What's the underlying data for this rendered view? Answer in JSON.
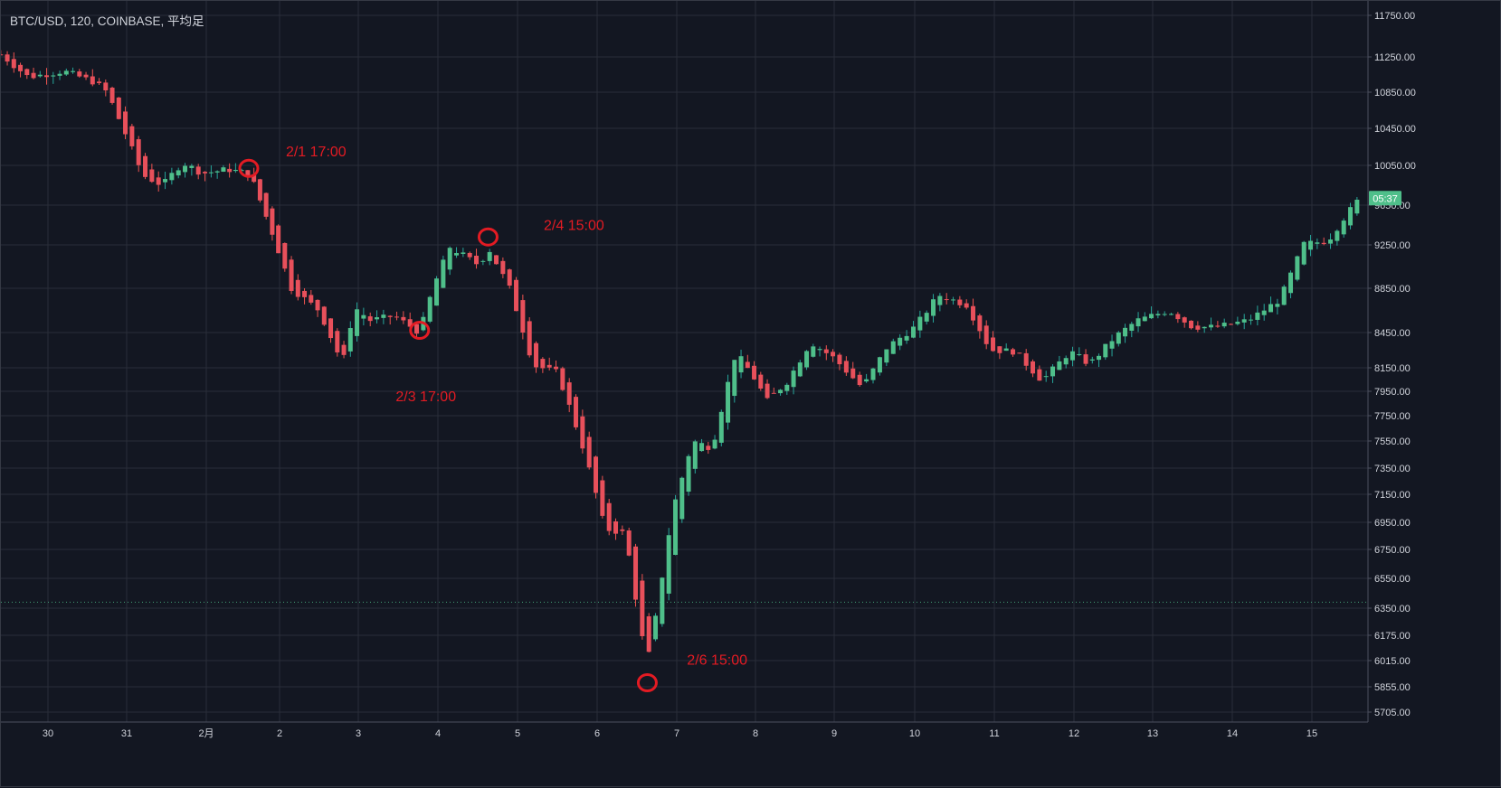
{
  "header": {
    "title": "BTC/USD, 120, COINBASE, 平均足"
  },
  "colors": {
    "background": "#131722",
    "grid": "#2a2e39",
    "up": "#26a69a",
    "upBody": "#4fbf8a",
    "down": "#ef5350",
    "downBody": "#e8505b",
    "annotation": "#e31b23",
    "axisText": "#d1d4dc",
    "priceBadge": "#4fbf8a",
    "refLine": "#4fbf8a"
  },
  "chart_data": {
    "type": "candlestick",
    "title": "BTC/USD, 120, COINBASE, 平均足",
    "y_axis": {
      "position": "right",
      "ticks": [
        {
          "value": 11750,
          "label": "11750.00"
        },
        {
          "value": 11250,
          "label": "11250.00"
        },
        {
          "value": 10850,
          "label": "10850.00"
        },
        {
          "value": 10450,
          "label": "10450.00"
        },
        {
          "value": 10050,
          "label": "10050.00"
        },
        {
          "value": 9650,
          "label": "9650.00"
        },
        {
          "value": 9250,
          "label": "9250.00"
        },
        {
          "value": 8850,
          "label": "8850.00"
        },
        {
          "value": 8450,
          "label": "8450.00"
        },
        {
          "value": 8150,
          "label": "8150.00"
        },
        {
          "value": 7950,
          "label": "7950.00"
        },
        {
          "value": 7750,
          "label": "7750.00"
        },
        {
          "value": 7550,
          "label": "7550.00"
        },
        {
          "value": 7350,
          "label": "7350.00"
        },
        {
          "value": 7150,
          "label": "7150.00"
        },
        {
          "value": 6950,
          "label": "6950.00"
        },
        {
          "value": 6750,
          "label": "6750.00"
        },
        {
          "value": 6550,
          "label": "6550.00"
        },
        {
          "value": 6350,
          "label": "6350.00"
        },
        {
          "value": 6175,
          "label": "6175.00"
        },
        {
          "value": 6015,
          "label": "6015.00"
        },
        {
          "value": 5855,
          "label": "5855.00"
        },
        {
          "value": 5705,
          "label": "5705.00"
        }
      ]
    },
    "x_axis": {
      "labels": [
        "30",
        "31",
        "2月",
        "2",
        "3",
        "4",
        "5",
        "6",
        "7",
        "8",
        "9",
        "10",
        "11",
        "12",
        "13",
        "14",
        "15"
      ],
      "label_days": [
        -2,
        -1,
        0,
        1,
        2,
        3,
        4,
        5,
        6,
        7,
        8,
        9,
        10,
        11,
        12,
        13,
        14
      ],
      "candles_per_day": 12,
      "first_candle_day": -2.6
    },
    "current_price_badge": "05:37",
    "current_price": 9720,
    "reference_line_price": 6390,
    "annotations": [
      {
        "label": "2/1 17:00",
        "day": 0.58,
        "price": 10020,
        "label_day_offset": 0.5,
        "label_price": 10150
      },
      {
        "label": "2/3 17:00",
        "day": 2.77,
        "price": 8470,
        "label_day_offset": -0.3,
        "label_price": 7870
      },
      {
        "label": "2/4 15:00",
        "day": 3.63,
        "price": 9330,
        "label_day_offset": 0.7,
        "label_price": 9400
      },
      {
        "label": "2/6 15:00",
        "day": 5.63,
        "price": 5880,
        "label_day_offset": 0.5,
        "label_price": 5990
      }
    ],
    "anchors": [
      {
        "day": -2.6,
        "price": 11280
      },
      {
        "day": -2.25,
        "price": 11020
      },
      {
        "day": -1.8,
        "price": 11090
      },
      {
        "day": -1.4,
        "price": 10960
      },
      {
        "day": -1.25,
        "price": 10850
      },
      {
        "day": -1.0,
        "price": 10360
      },
      {
        "day": -0.8,
        "price": 9950
      },
      {
        "day": -0.55,
        "price": 9850
      },
      {
        "day": -0.3,
        "price": 10080
      },
      {
        "day": -0.05,
        "price": 9970
      },
      {
        "day": 0.3,
        "price": 10010
      },
      {
        "day": 0.6,
        "price": 9960
      },
      {
        "day": 0.9,
        "price": 9370
      },
      {
        "day": 1.15,
        "price": 8850
      },
      {
        "day": 1.5,
        "price": 8650
      },
      {
        "day": 1.8,
        "price": 8180
      },
      {
        "day": 1.95,
        "price": 8680
      },
      {
        "day": 2.15,
        "price": 8560
      },
      {
        "day": 2.45,
        "price": 8600
      },
      {
        "day": 2.77,
        "price": 8450
      },
      {
        "day": 2.95,
        "price": 8880
      },
      {
        "day": 3.15,
        "price": 9230
      },
      {
        "day": 3.5,
        "price": 9070
      },
      {
        "day": 3.65,
        "price": 9200
      },
      {
        "day": 3.9,
        "price": 8850
      },
      {
        "day": 4.2,
        "price": 8170
      },
      {
        "day": 4.5,
        "price": 8110
      },
      {
        "day": 4.85,
        "price": 7450
      },
      {
        "day": 5.1,
        "price": 6900
      },
      {
        "day": 5.35,
        "price": 6870
      },
      {
        "day": 5.55,
        "price": 6200
      },
      {
        "day": 5.63,
        "price": 6000
      },
      {
        "day": 5.75,
        "price": 6330
      },
      {
        "day": 5.95,
        "price": 7040
      },
      {
        "day": 6.2,
        "price": 7550
      },
      {
        "day": 6.45,
        "price": 7500
      },
      {
        "day": 6.75,
        "price": 8280
      },
      {
        "day": 6.95,
        "price": 8100
      },
      {
        "day": 7.15,
        "price": 7870
      },
      {
        "day": 7.4,
        "price": 8030
      },
      {
        "day": 7.7,
        "price": 8370
      },
      {
        "day": 8.0,
        "price": 8230
      },
      {
        "day": 8.35,
        "price": 7980
      },
      {
        "day": 8.65,
        "price": 8320
      },
      {
        "day": 9.0,
        "price": 8500
      },
      {
        "day": 9.3,
        "price": 8790
      },
      {
        "day": 9.65,
        "price": 8700
      },
      {
        "day": 9.95,
        "price": 8300
      },
      {
        "day": 10.25,
        "price": 8290
      },
      {
        "day": 10.6,
        "price": 8040
      },
      {
        "day": 10.95,
        "price": 8290
      },
      {
        "day": 11.2,
        "price": 8180
      },
      {
        "day": 11.5,
        "price": 8400
      },
      {
        "day": 11.8,
        "price": 8560
      },
      {
        "day": 12.2,
        "price": 8650
      },
      {
        "day": 12.5,
        "price": 8500
      },
      {
        "day": 12.8,
        "price": 8500
      },
      {
        "day": 13.2,
        "price": 8560
      },
      {
        "day": 13.6,
        "price": 8750
      },
      {
        "day": 13.9,
        "price": 9260
      },
      {
        "day": 14.2,
        "price": 9290
      },
      {
        "day": 14.4,
        "price": 9520
      },
      {
        "day": 14.6,
        "price": 9720
      }
    ]
  }
}
